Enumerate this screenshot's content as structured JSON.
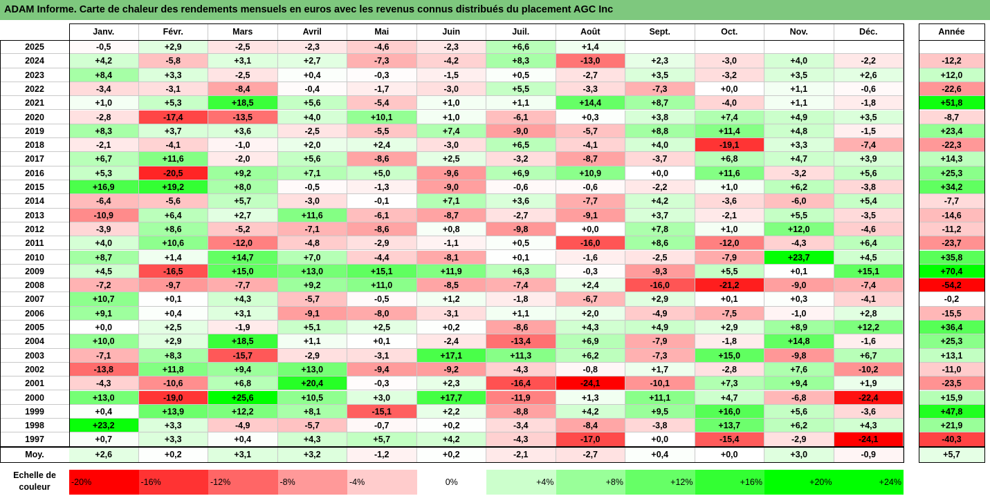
{
  "title": "ADAM Informe. Carte de chaleur des rendements mensuels en euros avec les revenus connus distribués du placement AGC Inc",
  "chart_data": {
    "type": "heatmap",
    "columns": [
      "Janv.",
      "Févr.",
      "Mars",
      "Avril",
      "Mai",
      "Juin",
      "Juil.",
      "Août",
      "Sept.",
      "Oct.",
      "Nov.",
      "Déc."
    ],
    "annual_header": "Année",
    "rows": [
      {
        "year": "2025",
        "values": [
          "-0,5",
          "+2,9",
          "-2,5",
          "-2,3",
          "-4,6",
          "-2,3",
          "+6,6",
          "+1,4",
          "",
          "",
          "",
          ""
        ],
        "annual": ""
      },
      {
        "year": "2024",
        "values": [
          "+4,2",
          "-5,8",
          "+3,1",
          "+2,7",
          "-7,3",
          "-4,2",
          "+8,3",
          "-13,0",
          "+2,3",
          "-3,0",
          "+4,0",
          "-2,2"
        ],
        "annual": "-12,2"
      },
      {
        "year": "2023",
        "values": [
          "+8,4",
          "+3,3",
          "-2,5",
          "+0,4",
          "-0,3",
          "-1,5",
          "+0,5",
          "-2,7",
          "+3,5",
          "-3,2",
          "+3,5",
          "+2,6"
        ],
        "annual": "+12,0"
      },
      {
        "year": "2022",
        "values": [
          "-3,4",
          "-3,1",
          "-8,4",
          "-0,4",
          "-1,7",
          "-3,0",
          "+5,5",
          "-3,3",
          "-7,3",
          "+0,0",
          "+1,1",
          "-0,6"
        ],
        "annual": "-22,6"
      },
      {
        "year": "2021",
        "values": [
          "+1,0",
          "+5,3",
          "+18,5",
          "+5,6",
          "-5,4",
          "+1,0",
          "+1,1",
          "+14,4",
          "+8,7",
          "-4,0",
          "+1,1",
          "-1,8"
        ],
        "annual": "+51,8"
      },
      {
        "year": "2020",
        "values": [
          "-2,8",
          "-17,4",
          "-13,5",
          "+4,0",
          "+10,1",
          "+1,0",
          "-6,1",
          "+0,3",
          "+3,8",
          "+7,4",
          "+4,9",
          "+3,5"
        ],
        "annual": "-8,7"
      },
      {
        "year": "2019",
        "values": [
          "+8,3",
          "+3,7",
          "+3,6",
          "-2,5",
          "-5,5",
          "+7,4",
          "-9,0",
          "-5,7",
          "+8,8",
          "+11,4",
          "+4,8",
          "-1,5"
        ],
        "annual": "+23,4"
      },
      {
        "year": "2018",
        "values": [
          "-2,1",
          "-4,1",
          "-1,0",
          "+2,0",
          "+2,4",
          "-3,0",
          "+6,5",
          "-4,1",
          "+4,0",
          "-19,1",
          "+3,3",
          "-7,4"
        ],
        "annual": "-22,3"
      },
      {
        "year": "2017",
        "values": [
          "+6,7",
          "+11,6",
          "-2,0",
          "+5,6",
          "-8,6",
          "+2,5",
          "-3,2",
          "-8,7",
          "-3,7",
          "+6,8",
          "+4,7",
          "+3,9"
        ],
        "annual": "+14,3"
      },
      {
        "year": "2016",
        "values": [
          "+5,3",
          "-20,5",
          "+9,2",
          "+7,1",
          "+5,0",
          "-9,6",
          "+6,9",
          "+10,9",
          "+0,0",
          "+11,6",
          "-3,2",
          "+5,6"
        ],
        "annual": "+25,3"
      },
      {
        "year": "2015",
        "values": [
          "+16,9",
          "+19,2",
          "+8,0",
          "-0,5",
          "-1,3",
          "-9,0",
          "-0,6",
          "-0,6",
          "-2,2",
          "+1,0",
          "+6,2",
          "-3,8"
        ],
        "annual": "+34,2"
      },
      {
        "year": "2014",
        "values": [
          "-6,4",
          "-5,6",
          "+5,7",
          "-3,0",
          "-0,1",
          "+7,1",
          "+3,6",
          "-7,7",
          "+4,2",
          "-3,6",
          "-6,0",
          "+5,4"
        ],
        "annual": "-7,7"
      },
      {
        "year": "2013",
        "values": [
          "-10,9",
          "+6,4",
          "+2,7",
          "+11,6",
          "-6,1",
          "-8,7",
          "-2,7",
          "-9,1",
          "+3,7",
          "-2,1",
          "+5,5",
          "-3,5"
        ],
        "annual": "-14,6"
      },
      {
        "year": "2012",
        "values": [
          "-3,9",
          "+8,6",
          "-5,2",
          "-7,1",
          "-8,6",
          "+0,8",
          "-9,8",
          "+0,0",
          "+7,8",
          "+1,0",
          "+12,0",
          "-4,6"
        ],
        "annual": "-11,2"
      },
      {
        "year": "2011",
        "values": [
          "+4,0",
          "+10,6",
          "-12,0",
          "-4,8",
          "-2,9",
          "-1,1",
          "+0,5",
          "-16,0",
          "+8,6",
          "-12,0",
          "-4,3",
          "+6,4"
        ],
        "annual": "-23,7"
      },
      {
        "year": "2010",
        "values": [
          "+8,7",
          "+1,4",
          "+14,7",
          "+7,0",
          "-4,4",
          "-8,1",
          "+0,1",
          "-1,6",
          "-2,5",
          "-7,9",
          "+23,7",
          "+4,5"
        ],
        "annual": "+35,8"
      },
      {
        "year": "2009",
        "values": [
          "+4,5",
          "-16,5",
          "+15,0",
          "+13,0",
          "+15,1",
          "+11,9",
          "+6,3",
          "-0,3",
          "-9,3",
          "+5,5",
          "+0,1",
          "+15,1"
        ],
        "annual": "+70,4"
      },
      {
        "year": "2008",
        "values": [
          "-7,2",
          "-9,7",
          "-7,7",
          "+9,2",
          "+11,0",
          "-8,5",
          "-7,4",
          "+2,4",
          "-16,0",
          "-21,2",
          "-9,0",
          "-7,4"
        ],
        "annual": "-54,2"
      },
      {
        "year": "2007",
        "values": [
          "+10,7",
          "+0,1",
          "+4,3",
          "-5,7",
          "-0,5",
          "+1,2",
          "-1,8",
          "-6,7",
          "+2,9",
          "+0,1",
          "+0,3",
          "-4,1"
        ],
        "annual": "-0,2"
      },
      {
        "year": "2006",
        "values": [
          "+9,1",
          "+0,4",
          "+3,1",
          "-9,1",
          "-8,0",
          "-3,1",
          "+1,1",
          "+2,0",
          "-4,9",
          "-7,5",
          "-1,0",
          "+2,8"
        ],
        "annual": "-15,5"
      },
      {
        "year": "2005",
        "values": [
          "+0,0",
          "+2,5",
          "-1,9",
          "+5,1",
          "+2,5",
          "+0,2",
          "-8,6",
          "+4,3",
          "+4,9",
          "+2,9",
          "+8,9",
          "+12,2"
        ],
        "annual": "+36,4"
      },
      {
        "year": "2004",
        "values": [
          "+10,0",
          "+2,9",
          "+18,5",
          "+1,1",
          "+0,1",
          "-2,4",
          "-13,4",
          "+6,9",
          "-7,9",
          "-1,8",
          "+14,8",
          "-1,6"
        ],
        "annual": "+25,3"
      },
      {
        "year": "2003",
        "values": [
          "-7,1",
          "+8,3",
          "-15,7",
          "-2,9",
          "-3,1",
          "+17,1",
          "+11,3",
          "+6,2",
          "-7,3",
          "+15,0",
          "-9,8",
          "+6,7"
        ],
        "annual": "+13,1"
      },
      {
        "year": "2002",
        "values": [
          "-13,8",
          "+11,8",
          "+9,4",
          "+13,0",
          "-9,4",
          "-9,2",
          "-4,3",
          "-0,8",
          "+1,7",
          "-2,8",
          "+7,6",
          "-10,2"
        ],
        "annual": "-11,0"
      },
      {
        "year": "2001",
        "values": [
          "-4,3",
          "-10,6",
          "+6,8",
          "+20,4",
          "-0,3",
          "+2,3",
          "-16,4",
          "-24,1",
          "-10,1",
          "+7,3",
          "+9,4",
          "+1,9"
        ],
        "annual": "-23,5"
      },
      {
        "year": "2000",
        "values": [
          "+13,0",
          "-19,0",
          "+25,6",
          "+10,5",
          "+3,0",
          "+17,7",
          "-11,9",
          "+1,3",
          "+11,1",
          "+4,7",
          "-6,8",
          "-22,4"
        ],
        "annual": "+15,9"
      },
      {
        "year": "1999",
        "values": [
          "+0,4",
          "+13,9",
          "+12,2",
          "+8,1",
          "-15,1",
          "+2,2",
          "-8,8",
          "+4,2",
          "+9,5",
          "+16,0",
          "+5,6",
          "-3,6"
        ],
        "annual": "+47,8"
      },
      {
        "year": "1998",
        "values": [
          "+23,2",
          "+3,3",
          "-4,9",
          "-5,7",
          "-0,7",
          "+0,2",
          "-3,4",
          "-8,4",
          "-3,8",
          "+13,7",
          "+6,2",
          "+4,3"
        ],
        "annual": "+21,9"
      },
      {
        "year": "1997",
        "values": [
          "+0,7",
          "+3,3",
          "+0,4",
          "+4,3",
          "+5,7",
          "+4,2",
          "-4,3",
          "-17,0",
          "+0,0",
          "-15,4",
          "-2,9",
          "-24,1"
        ],
        "annual": "-40,3"
      }
    ],
    "average": {
      "label": "Moy.",
      "values": [
        "+2,6",
        "+0,2",
        "+3,1",
        "+3,2",
        "-1,2",
        "+0,2",
        "-2,1",
        "-2,7",
        "+0,4",
        "+0,0",
        "+3,0",
        "-0,9"
      ],
      "annual": "+5,7"
    },
    "color_scale": {
      "label_line1": "Echelle de",
      "label_line2": "couleur",
      "steps": [
        {
          "label": "-20%",
          "value": -20,
          "color": "#ff0000"
        },
        {
          "label": "-16%",
          "value": -16,
          "color": "#ff3333"
        },
        {
          "label": "-12%",
          "value": -12,
          "color": "#ff6666"
        },
        {
          "label": "-8%",
          "value": -8,
          "color": "#ff9999"
        },
        {
          "label": "-4%",
          "value": -4,
          "color": "#ffcccc"
        },
        {
          "label": "0%",
          "value": 0,
          "color": "#ffffff"
        },
        {
          "label": "+4%",
          "value": 4,
          "color": "#ccffcc"
        },
        {
          "label": "+8%",
          "value": 8,
          "color": "#99ff99"
        },
        {
          "label": "+12%",
          "value": 12,
          "color": "#66ff66"
        },
        {
          "label": "+16%",
          "value": 16,
          "color": "#33ff33"
        },
        {
          "label": "+20%",
          "value": 20,
          "color": "#00ff00"
        },
        {
          "label": "+24%",
          "value": 24,
          "color": "#00ff00"
        }
      ]
    }
  }
}
